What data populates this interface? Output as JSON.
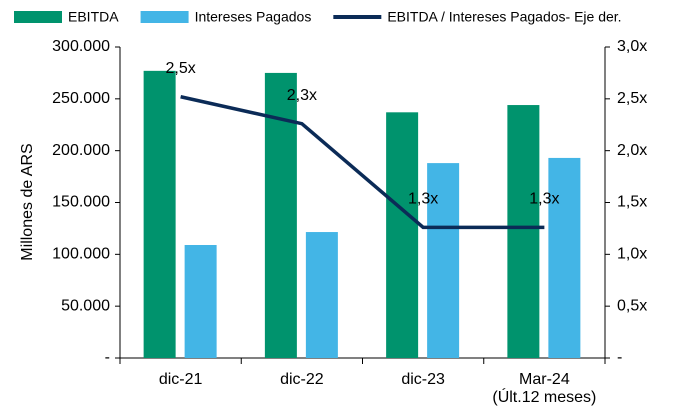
{
  "chart_data": {
    "type": "bar",
    "y_label": "Millones de ARS",
    "categories": [
      "dic-21",
      "dic-22",
      "dic-23",
      "Mar-24\n(Últ.12 meses)"
    ],
    "series": [
      {
        "name": "EBITDA",
        "color": "#00936d",
        "values": [
          277000,
          275000,
          237000,
          244000
        ]
      },
      {
        "name": "Intereses Pagados",
        "color": "#43b5e6",
        "values": [
          109000,
          121500,
          188000,
          193000
        ]
      },
      {
        "name": "EBITDA / Intereses Pagados- Eje der.",
        "color": "#0b2b57",
        "type": "line",
        "axis": "y2",
        "values": [
          2.52,
          2.26,
          1.26,
          1.26
        ],
        "value_labels": [
          "2,5x",
          "2,3x",
          "1,3x",
          "1,3x"
        ]
      }
    ],
    "ylim": [
      0,
      300000
    ],
    "yticks": [
      {
        "value": 0,
        "label": "-"
      },
      {
        "value": 50000,
        "label": "50.000"
      },
      {
        "value": 100000,
        "label": "100.000"
      },
      {
        "value": 150000,
        "label": "150.000"
      },
      {
        "value": 200000,
        "label": "200.000"
      },
      {
        "value": 250000,
        "label": "250.000"
      },
      {
        "value": 300000,
        "label": "300.000"
      }
    ],
    "y2lim": [
      0,
      3
    ],
    "y2ticks": [
      {
        "value": 0,
        "label": "-"
      },
      {
        "value": 0.5,
        "label": "0,5x"
      },
      {
        "value": 1,
        "label": "1,0x"
      },
      {
        "value": 1.5,
        "label": "1,5x"
      },
      {
        "value": 2,
        "label": "2,0x"
      },
      {
        "value": 2.5,
        "label": "2,5x"
      },
      {
        "value": 3,
        "label": "3,0x"
      }
    ],
    "legend": "top"
  }
}
